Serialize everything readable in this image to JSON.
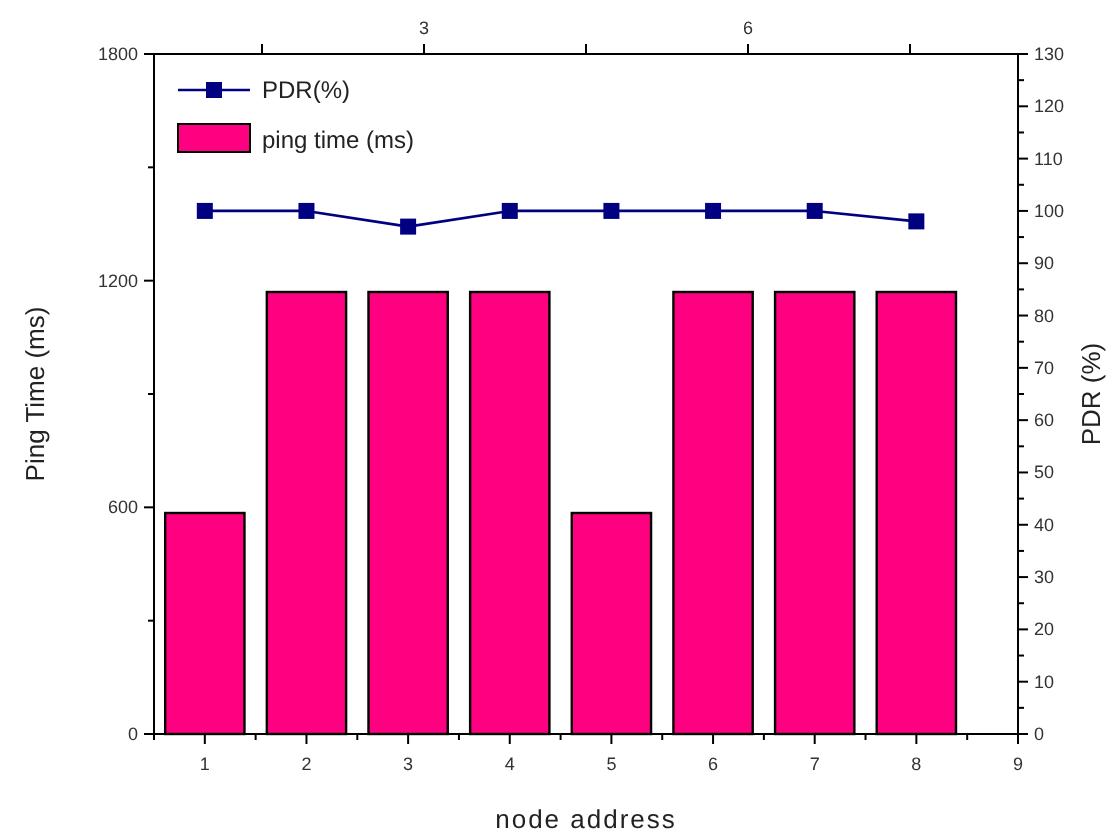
{
  "chart_data": {
    "type": "bar",
    "xlabel": "node address",
    "ylabel": "Ping Time (ms)",
    "y2label": "PDR (%)",
    "x": [
      1,
      2,
      3,
      4,
      5,
      6,
      7,
      8
    ],
    "xlim": [
      0.5,
      9
    ],
    "xticks": [
      1,
      2,
      3,
      4,
      5,
      6,
      7,
      8,
      9
    ],
    "x2lim": [
      0.5,
      8.5
    ],
    "x2ticks": [
      {
        "value": 1.5,
        "label": null
      },
      3,
      {
        "value": 4.5,
        "label": null
      },
      6,
      {
        "value": 7.5,
        "label": null
      }
    ],
    "ylim": [
      0,
      1800
    ],
    "yticks": [
      0,
      {
        "value": 300,
        "label": null
      },
      600,
      {
        "value": 900,
        "label": null
      },
      1200,
      {
        "value": 1500,
        "label": null
      },
      1800
    ],
    "y2lim": [
      0,
      130
    ],
    "y2ticks": [
      0,
      10,
      20,
      30,
      40,
      50,
      60,
      70,
      80,
      90,
      100,
      110,
      120,
      130
    ],
    "series": [
      {
        "name": "PDR(%)",
        "type": "line",
        "axis": "y2",
        "color": "#000080",
        "marker": "square",
        "values": [
          100,
          100,
          97,
          100,
          100,
          100,
          100,
          98
        ]
      },
      {
        "name": "ping time (ms)",
        "color": "#ff0080",
        "values": [
          585,
          1170,
          1170,
          1170,
          585,
          1170,
          1170,
          1170
        ]
      }
    ],
    "legend": "top left",
    "grid": false
  }
}
